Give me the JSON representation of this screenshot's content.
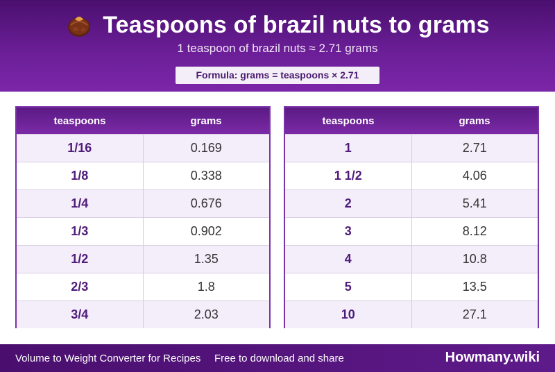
{
  "header": {
    "icon": "brazil-nut-icon",
    "title": "Teaspoons of brazil nuts to grams",
    "subtitle": "1 teaspoon of brazil nuts ≈ 2.71 grams",
    "formula": "Formula: grams = teaspoons × 2.71"
  },
  "tables": [
    {
      "headers": [
        "teaspoons",
        "grams"
      ],
      "rows": [
        [
          "1/16",
          "0.169"
        ],
        [
          "1/8",
          "0.338"
        ],
        [
          "1/4",
          "0.676"
        ],
        [
          "1/3",
          "0.902"
        ],
        [
          "1/2",
          "1.35"
        ],
        [
          "2/3",
          "1.8"
        ],
        [
          "3/4",
          "2.03"
        ]
      ]
    },
    {
      "headers": [
        "teaspoons",
        "grams"
      ],
      "rows": [
        [
          "1",
          "2.71"
        ],
        [
          "1 1/2",
          "4.06"
        ],
        [
          "2",
          "5.41"
        ],
        [
          "3",
          "8.12"
        ],
        [
          "4",
          "10.8"
        ],
        [
          "5",
          "13.5"
        ],
        [
          "10",
          "27.1"
        ]
      ]
    }
  ],
  "footer": {
    "left_text": "Volume to Weight Converter for Recipes",
    "middle_text": "Free to download and share",
    "brand": "Howmany.wiki"
  },
  "colors": {
    "primary": "#6a1e96",
    "dark": "#4a0f6e",
    "row_alt": "#f3eefa",
    "accent_text": "#4f1b7a"
  }
}
